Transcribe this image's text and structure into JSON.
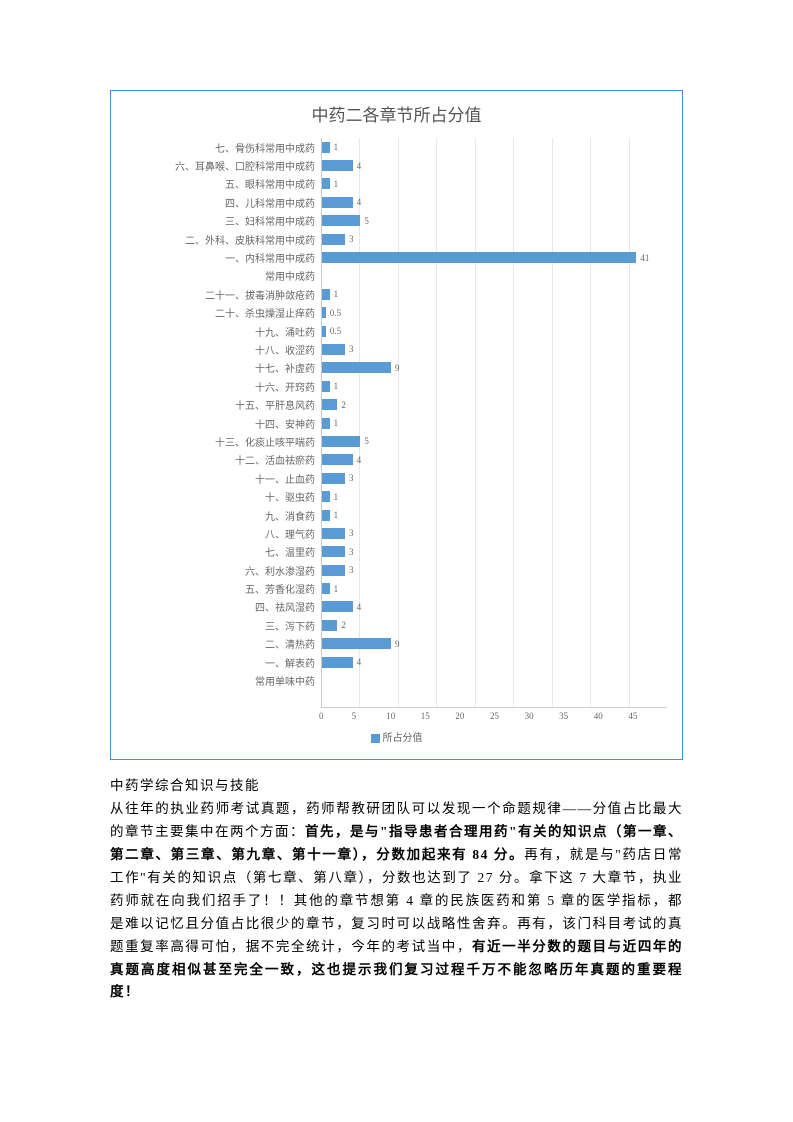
{
  "chart": {
    "type": "bar-horizontal",
    "title": "中药二各章节所占分值",
    "bar_color": "#5b9bd5",
    "grid_color": "#e8e8e8",
    "border_color": "#4a90d9",
    "background_color": "#ffffff",
    "xmax": 45,
    "xtick_step": 5,
    "xticks": [
      "0",
      "5",
      "10",
      "15",
      "20",
      "25",
      "30",
      "35",
      "40",
      "45"
    ],
    "legend_label": "所占分值",
    "items": [
      {
        "label": "七、骨伤科常用中成药",
        "value": 1,
        "display": "1"
      },
      {
        "label": "六、耳鼻喉、口腔科常用中成药",
        "value": 4,
        "display": "4"
      },
      {
        "label": "五、眼科常用中成药",
        "value": 1,
        "display": "1"
      },
      {
        "label": "四、儿科常用中成药",
        "value": 4,
        "display": "4"
      },
      {
        "label": "三、妇科常用中成药",
        "value": 5,
        "display": "5"
      },
      {
        "label": "二、外科、皮肤科常用中成药",
        "value": 3,
        "display": "3"
      },
      {
        "label": "一、内科常用中成药",
        "value": 41,
        "display": "41"
      },
      {
        "label": "常用中成药",
        "value": 0,
        "display": ""
      },
      {
        "label": "二十一、拔毒消肿敛疮药",
        "value": 1,
        "display": "1"
      },
      {
        "label": "二十、杀虫燥湿止痒药",
        "value": 0.5,
        "display": "0.5"
      },
      {
        "label": "十九、涌吐药",
        "value": 0.5,
        "display": "0.5"
      },
      {
        "label": "十八、收涩药",
        "value": 3,
        "display": "3"
      },
      {
        "label": "十七、补虚药",
        "value": 9,
        "display": "9"
      },
      {
        "label": "十六、开窍药",
        "value": 1,
        "display": "1"
      },
      {
        "label": "十五、平肝息风药",
        "value": 2,
        "display": "2"
      },
      {
        "label": "十四、安神药",
        "value": 1,
        "display": "1"
      },
      {
        "label": "十三、化痰止咳平喘药",
        "value": 5,
        "display": "5"
      },
      {
        "label": "十二、活血祛瘀药",
        "value": 4,
        "display": "4"
      },
      {
        "label": "十一、止血药",
        "value": 3,
        "display": "3"
      },
      {
        "label": "十、驱虫药",
        "value": 1,
        "display": "1"
      },
      {
        "label": "九、消食药",
        "value": 1,
        "display": "1"
      },
      {
        "label": "八、理气药",
        "value": 3,
        "display": "3"
      },
      {
        "label": "七、温里药",
        "value": 3,
        "display": "3"
      },
      {
        "label": "六、利水渗湿药",
        "value": 3,
        "display": "3"
      },
      {
        "label": "五、芳香化湿药",
        "value": 1,
        "display": "1"
      },
      {
        "label": "四、祛风湿药",
        "value": 4,
        "display": "4"
      },
      {
        "label": "三、泻下药",
        "value": 2,
        "display": "2"
      },
      {
        "label": "二、清热药",
        "value": 9,
        "display": "9"
      },
      {
        "label": "一、解表药",
        "value": 4,
        "display": "4"
      },
      {
        "label": "常用单味中药",
        "value": 0,
        "display": ""
      }
    ]
  },
  "text": {
    "heading": "中药学综合知识与技能",
    "p1a": "从往年的执业药师考试真题，药师帮教研团队可以发现一个命题规律——分值占比最大的章节主要集中在两个方面：",
    "p1b": "首先，是与\"指导患者合理用药\"有关的知识点（第一章、第二章、第三章、第九章、第十一章），分数加起来有 84 分。",
    "p1c": "再有，就是与\"药店日常工作\"有关的知识点（第七章、第八章），分数也达到了 27 分。拿下这 7 大章节，执业药师就在向我们招手了！！其他的章节想第 4 章的民族医药和第 5 章的医学指标，都是难以记忆且分值占比很少的章节，复习时可以战略性舍弃。再有，该门科目考试的真题重复率高得可怕，据不完全统计，今年的考试当中，",
    "p1d": "有近一半分数的题目与近四年的真题高度相似甚至完全一致，这也提示我们复习过程千万不能忽略历年真题的重要程度！"
  }
}
